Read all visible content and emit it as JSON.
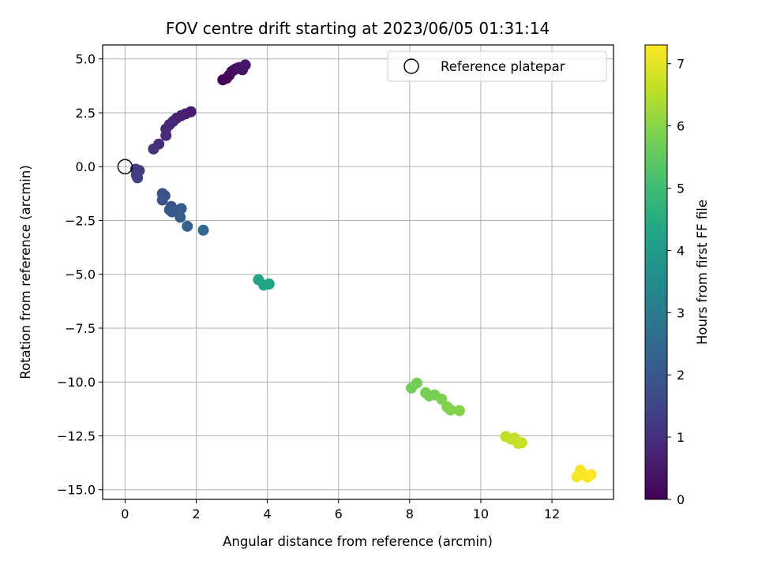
{
  "chart_data": {
    "type": "scatter",
    "title": "FOV centre drift starting at 2023/06/05 01:31:14",
    "xlabel": "Angular distance from reference (arcmin)",
    "ylabel": "Rotation from reference (arcmin)",
    "xlim": [
      -0.63,
      13.73
    ],
    "ylim": [
      -15.45,
      5.65
    ],
    "xticks": [
      0,
      2,
      4,
      6,
      8,
      10,
      12
    ],
    "yticks": [
      5.0,
      2.5,
      0.0,
      -2.5,
      -5.0,
      -7.5,
      -10.0,
      -12.5,
      -15.0
    ],
    "ytick_labels": [
      "5.0",
      "2.5",
      "0.0",
      "−2.5",
      "−5.0",
      "−7.5",
      "−10.0",
      "−12.5",
      "−15.0"
    ],
    "grid": true,
    "legend": {
      "position": "top-right",
      "entries": [
        "Reference platepar"
      ]
    },
    "reference_point": {
      "x": 0,
      "y": 0,
      "label": "Reference platepar"
    },
    "colorbar": {
      "label": "Hours from first FF file",
      "colormap": "viridis",
      "range": [
        0,
        7.3
      ],
      "ticks": [
        0,
        1,
        2,
        3,
        4,
        5,
        6,
        7
      ]
    },
    "points": [
      {
        "x": 2.75,
        "y": 4.03,
        "c": 0.05
      },
      {
        "x": 2.85,
        "y": 4.1,
        "c": 0.1
      },
      {
        "x": 2.93,
        "y": 4.25,
        "c": 0.15
      },
      {
        "x": 3.0,
        "y": 4.42,
        "c": 0.2
      },
      {
        "x": 3.07,
        "y": 4.5,
        "c": 0.25
      },
      {
        "x": 3.13,
        "y": 4.55,
        "c": 0.3
      },
      {
        "x": 3.2,
        "y": 4.6,
        "c": 0.35
      },
      {
        "x": 3.3,
        "y": 4.5,
        "c": 0.4
      },
      {
        "x": 3.38,
        "y": 4.72,
        "c": 0.45
      },
      {
        "x": 1.85,
        "y": 2.55,
        "c": 0.55
      },
      {
        "x": 1.7,
        "y": 2.45,
        "c": 0.6
      },
      {
        "x": 1.58,
        "y": 2.37,
        "c": 0.65
      },
      {
        "x": 1.45,
        "y": 2.25,
        "c": 0.7
      },
      {
        "x": 1.35,
        "y": 2.1,
        "c": 0.75
      },
      {
        "x": 1.25,
        "y": 1.95,
        "c": 0.8
      },
      {
        "x": 1.15,
        "y": 1.75,
        "c": 0.85
      },
      {
        "x": 1.15,
        "y": 1.45,
        "c": 0.9
      },
      {
        "x": 0.95,
        "y": 1.05,
        "c": 0.95
      },
      {
        "x": 0.8,
        "y": 0.82,
        "c": 1.05
      },
      {
        "x": 0.3,
        "y": -0.12,
        "c": 1.2
      },
      {
        "x": 0.4,
        "y": -0.18,
        "c": 1.25
      },
      {
        "x": 0.32,
        "y": -0.4,
        "c": 1.3
      },
      {
        "x": 0.35,
        "y": -0.52,
        "c": 1.35
      },
      {
        "x": 1.05,
        "y": -1.25,
        "c": 1.75
      },
      {
        "x": 1.12,
        "y": -1.35,
        "c": 1.8
      },
      {
        "x": 1.05,
        "y": -1.55,
        "c": 1.85
      },
      {
        "x": 1.3,
        "y": -1.85,
        "c": 1.9
      },
      {
        "x": 1.25,
        "y": -2.0,
        "c": 1.95
      },
      {
        "x": 1.32,
        "y": -2.1,
        "c": 2.0
      },
      {
        "x": 1.58,
        "y": -1.95,
        "c": 2.05
      },
      {
        "x": 1.55,
        "y": -2.35,
        "c": 2.1
      },
      {
        "x": 1.75,
        "y": -2.77,
        "c": 2.25
      },
      {
        "x": 2.2,
        "y": -2.95,
        "c": 2.5
      },
      {
        "x": 3.75,
        "y": -5.25,
        "c": 4.2
      },
      {
        "x": 3.9,
        "y": -5.5,
        "c": 4.25
      },
      {
        "x": 4.05,
        "y": -5.45,
        "c": 4.3
      },
      {
        "x": 8.05,
        "y": -10.28,
        "c": 5.7
      },
      {
        "x": 8.2,
        "y": -10.05,
        "c": 5.72
      },
      {
        "x": 8.45,
        "y": -10.5,
        "c": 5.75
      },
      {
        "x": 8.55,
        "y": -10.65,
        "c": 5.78
      },
      {
        "x": 8.7,
        "y": -10.6,
        "c": 5.8
      },
      {
        "x": 8.9,
        "y": -10.8,
        "c": 5.85
      },
      {
        "x": 9.05,
        "y": -11.15,
        "c": 5.9
      },
      {
        "x": 9.15,
        "y": -11.3,
        "c": 5.92
      },
      {
        "x": 9.4,
        "y": -11.33,
        "c": 5.95
      },
      {
        "x": 10.7,
        "y": -12.53,
        "c": 6.6
      },
      {
        "x": 10.85,
        "y": -12.65,
        "c": 6.62
      },
      {
        "x": 10.95,
        "y": -12.6,
        "c": 6.65
      },
      {
        "x": 11.05,
        "y": -12.85,
        "c": 6.68
      },
      {
        "x": 11.15,
        "y": -12.82,
        "c": 6.7
      },
      {
        "x": 12.7,
        "y": -14.4,
        "c": 7.2
      },
      {
        "x": 12.8,
        "y": -14.1,
        "c": 7.22
      },
      {
        "x": 12.85,
        "y": -14.25,
        "c": 7.24
      },
      {
        "x": 13.0,
        "y": -14.42,
        "c": 7.26
      },
      {
        "x": 13.1,
        "y": -14.3,
        "c": 7.28
      }
    ]
  }
}
